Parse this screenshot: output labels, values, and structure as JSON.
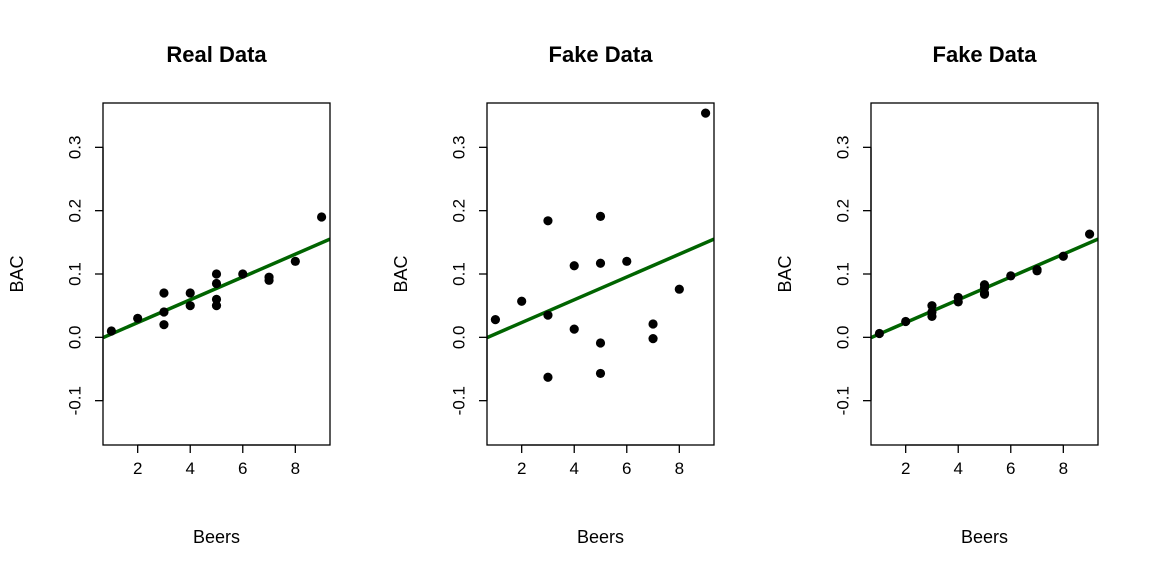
{
  "chart_data": [
    {
      "type": "scatter",
      "title": "Real Data",
      "xlabel": "Beers",
      "ylabel": "BAC",
      "xlim": [
        0.68,
        9.32
      ],
      "ylim": [
        -0.17,
        0.37
      ],
      "xticks": [
        2,
        4,
        6,
        8
      ],
      "yticks": [
        -0.1,
        0.0,
        0.1,
        0.2,
        0.3
      ],
      "points": [
        [
          1,
          0.01
        ],
        [
          2,
          0.03
        ],
        [
          3,
          0.07
        ],
        [
          3,
          0.04
        ],
        [
          3,
          0.02
        ],
        [
          4,
          0.07
        ],
        [
          4,
          0.05
        ],
        [
          5,
          0.1
        ],
        [
          5,
          0.085
        ],
        [
          5,
          0.06
        ],
        [
          5,
          0.05
        ],
        [
          6,
          0.1
        ],
        [
          7,
          0.095
        ],
        [
          7,
          0.09
        ],
        [
          8,
          0.12
        ],
        [
          9,
          0.19
        ]
      ],
      "fit_line": {
        "intercept": -0.0127,
        "slope": 0.018
      }
    },
    {
      "type": "scatter",
      "title": "Fake Data",
      "xlabel": "Beers",
      "ylabel": "BAC",
      "xlim": [
        0.68,
        9.32
      ],
      "ylim": [
        -0.17,
        0.37
      ],
      "xticks": [
        2,
        4,
        6,
        8
      ],
      "yticks": [
        -0.1,
        0.0,
        0.1,
        0.2,
        0.3
      ],
      "points": [
        [
          1,
          0.028
        ],
        [
          2,
          0.057
        ],
        [
          3,
          0.184
        ],
        [
          3,
          0.035
        ],
        [
          3,
          -0.063
        ],
        [
          4,
          0.113
        ],
        [
          4,
          0.013
        ],
        [
          5,
          0.191
        ],
        [
          5,
          0.117
        ],
        [
          5,
          -0.009
        ],
        [
          5,
          -0.057
        ],
        [
          6,
          0.12
        ],
        [
          7,
          0.021
        ],
        [
          7,
          -0.002
        ],
        [
          8,
          0.076
        ],
        [
          9,
          0.354
        ]
      ],
      "fit_line": {
        "intercept": -0.0127,
        "slope": 0.018
      }
    },
    {
      "type": "scatter",
      "title": "Fake Data",
      "xlabel": "Beers",
      "ylabel": "BAC",
      "xlim": [
        0.68,
        9.32
      ],
      "ylim": [
        -0.17,
        0.37
      ],
      "xticks": [
        2,
        4,
        6,
        8
      ],
      "yticks": [
        -0.1,
        0.0,
        0.1,
        0.2,
        0.3
      ],
      "points": [
        [
          1,
          0.006
        ],
        [
          2,
          0.025
        ],
        [
          3,
          0.05
        ],
        [
          3,
          0.04
        ],
        [
          3,
          0.033
        ],
        [
          4,
          0.063
        ],
        [
          4,
          0.056
        ],
        [
          5,
          0.083
        ],
        [
          5,
          0.078
        ],
        [
          5,
          0.07
        ],
        [
          5,
          0.068
        ],
        [
          6,
          0.097
        ],
        [
          7,
          0.107
        ],
        [
          7,
          0.105
        ],
        [
          8,
          0.128
        ],
        [
          9,
          0.163
        ]
      ],
      "fit_line": {
        "intercept": -0.0127,
        "slope": 0.018
      }
    }
  ],
  "colors": {
    "points": "#000000",
    "fit_line": "#006400",
    "axes": "#000000"
  }
}
